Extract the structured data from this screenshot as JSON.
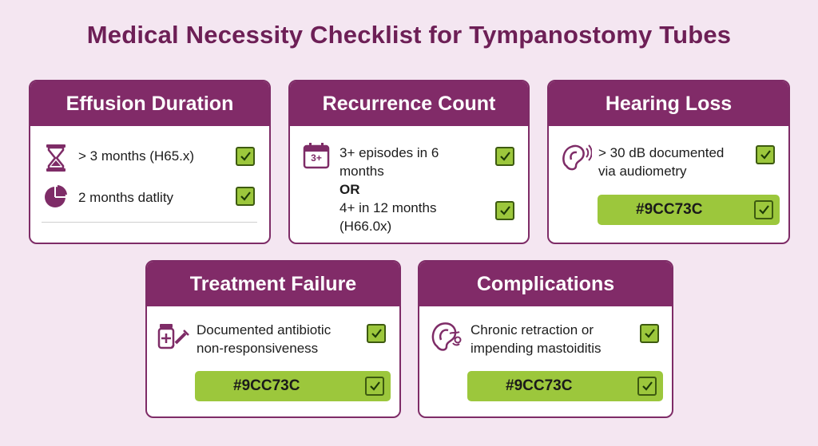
{
  "title": "Medical Necessity Checklist for Tympanostomy Tubes",
  "colors": {
    "accent": "#9CC73C",
    "header": "#812B68",
    "title": "#6D1F56",
    "background": "#F4E6F1"
  },
  "cards": {
    "effusion": {
      "title": "Effusion Duration",
      "items": [
        {
          "icon": "hourglass-icon",
          "text": "> 3 months (H65.x)"
        },
        {
          "icon": "pie-chart-icon",
          "text": "2 months datlity"
        }
      ]
    },
    "recurrence": {
      "title": "Recurrence Count",
      "icon": "calendar-3plus-icon",
      "icon_label": "3+",
      "line1": "3+ episodes in 6",
      "line2": "months",
      "or": "OR",
      "line3": "4+ in 12 months",
      "line4": "(H66.0x)"
    },
    "hearing": {
      "title": "Hearing Loss",
      "icon": "ear-sound-icon",
      "line1": "> 30 dB documented",
      "line2": "via audiometry",
      "bar_label": "#9CC73C"
    },
    "treatment": {
      "title": "Treatment Failure",
      "icon": "medicine-syringe-icon",
      "line1": "Documented antibiotic",
      "line2": "non-responsiveness",
      "bar_label": "#9CC73C"
    },
    "complications": {
      "title": "Complications",
      "icon": "ear-anatomy-icon",
      "line1": "Chronic retraction or",
      "line2": "impending mastoiditis",
      "bar_label": "#9CC73C"
    }
  }
}
